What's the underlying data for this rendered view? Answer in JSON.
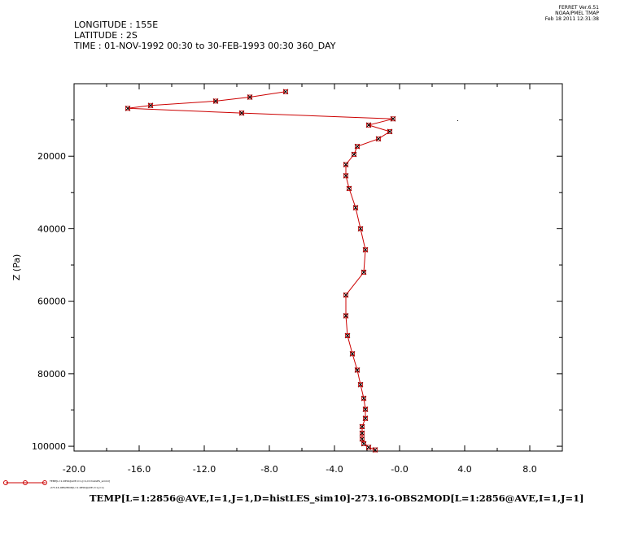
{
  "stamp": {
    "line1": "FERRET  Ver.6.51",
    "line2": "NOAA/PMEL TMAP",
    "line3": "Feb 18 2011 12:31:38"
  },
  "header": {
    "longitude": "LONGITUDE : 155E",
    "latitude": "LATITUDE : 2S",
    "time": "TIME : 01-NOV-1992 00:30 to 30-FEB-1993 00:30 360_DAY"
  },
  "caption": "TEMP[L=1:2856@AVE,I=1,J=1,D=histLES_sim10]-273.16-OBS2MOD[L=1:2856@AVE,I=1,J=1]",
  "legend": {
    "line1": "TEMP[L=1:2856@AVE,I=1,J=1,D=histLES_sim10]",
    "line2": "-273.16-OBS2MOD[L=1:2856@AVE,I=1,J=1]"
  },
  "colors": {
    "series": "#cc0000",
    "axis": "#000000"
  },
  "chart_data": {
    "type": "line",
    "title": "",
    "xlabel": "",
    "ylabel": "Z (Pa)",
    "xlim": [
      -20,
      10
    ],
    "ylim": [
      0,
      101325
    ],
    "y_inverted": true,
    "xticks": [
      -20,
      -16,
      -12,
      -8,
      -4,
      0,
      4,
      8
    ],
    "xtick_labels": [
      "-20.0",
      "-16.0",
      "-12.0",
      "-8.0",
      "-4.0",
      "-0.0",
      "4.0",
      "8.0"
    ],
    "yticks": [
      20000,
      40000,
      60000,
      80000,
      100000
    ],
    "ytick_labels": [
      "20000",
      "40000",
      "60000",
      "80000",
      "100000"
    ],
    "series": [
      {
        "marker": "x",
        "x": [
          -7.0,
          -9.2,
          -11.3,
          -15.3,
          -16.7,
          -9.7,
          -0.4,
          -1.9,
          -0.6,
          -1.3,
          -2.6,
          -2.8,
          -3.3,
          -3.3,
          -3.1,
          -2.7,
          -2.4,
          -2.1,
          -2.2,
          -3.3,
          -3.3,
          -3.2,
          -2.9,
          -2.6,
          -2.4,
          -2.2,
          -2.1,
          -2.1,
          -2.3,
          -2.3,
          -2.3,
          -2.2,
          -1.9,
          -1.5
        ],
        "y": [
          2200,
          3700,
          4800,
          6000,
          6800,
          8100,
          9700,
          11400,
          13200,
          15200,
          17300,
          19500,
          22300,
          25400,
          28900,
          34200,
          40000,
          45800,
          52000,
          58300,
          64000,
          69500,
          74500,
          79000,
          83000,
          86800,
          89800,
          92300,
          94600,
          96400,
          98000,
          99300,
          100300,
          101000
        ]
      }
    ]
  }
}
